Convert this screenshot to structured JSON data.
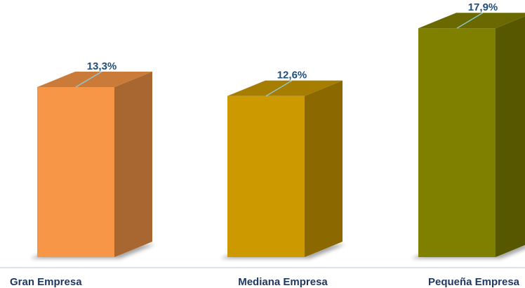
{
  "chart_data": {
    "type": "bar",
    "categories": [
      "Gran Empresa",
      "Mediana Empresa",
      "Pequeña Empresa"
    ],
    "values": [
      13.3,
      12.6,
      17.9
    ],
    "value_labels": [
      "13,3%",
      "12,6%",
      "17,9%"
    ],
    "ylim": [
      0,
      20
    ],
    "grid": false,
    "legend": "none",
    "style": "3d-columns",
    "colors": {
      "bars": [
        "#F79646",
        "#CC9900",
        "#808000"
      ],
      "label_text": "#1F4E79",
      "category_text": "#1F3864",
      "leader_line": "#8ECFDA",
      "axis_line": "#C9DCEB"
    }
  }
}
